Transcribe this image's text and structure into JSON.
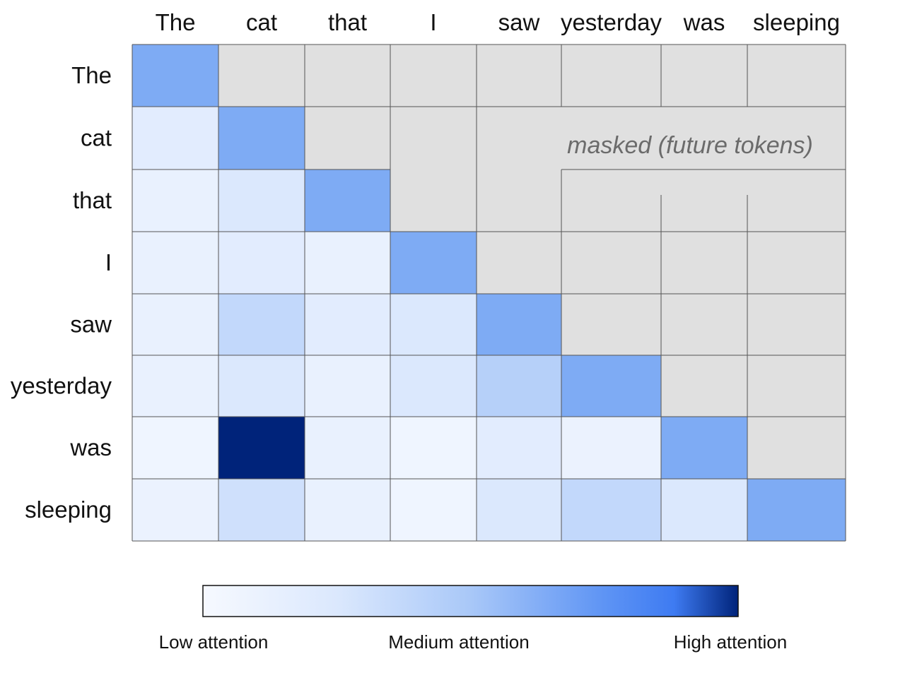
{
  "chart_data": {
    "type": "heatmap",
    "x_tokens": [
      "The",
      "cat",
      "that",
      "I",
      "saw",
      "yesterday",
      "was",
      "sleeping"
    ],
    "y_tokens": [
      "The",
      "cat",
      "that",
      "I",
      "saw",
      "yesterday",
      "was",
      "sleeping"
    ],
    "values": [
      [
        0.55,
        null,
        null,
        null,
        null,
        null,
        null,
        null
      ],
      [
        0.15,
        0.55,
        null,
        null,
        null,
        null,
        null,
        null
      ],
      [
        0.1,
        0.2,
        0.55,
        null,
        null,
        null,
        null,
        null
      ],
      [
        0.1,
        0.15,
        0.1,
        0.55,
        null,
        null,
        null,
        null
      ],
      [
        0.1,
        0.3,
        0.15,
        0.2,
        0.55,
        null,
        null,
        null
      ],
      [
        0.1,
        0.2,
        0.1,
        0.2,
        0.35,
        0.55,
        null,
        null
      ],
      [
        0.05,
        1.0,
        0.1,
        0.05,
        0.15,
        0.08,
        0.55,
        null
      ],
      [
        0.08,
        0.25,
        0.1,
        0.05,
        0.2,
        0.3,
        0.2,
        0.55
      ]
    ],
    "value_range": [
      0,
      1
    ],
    "mask_annotation": "masked (future tokens)",
    "colorbar": {
      "low_label": "Low attention",
      "mid_label": "Medium attention",
      "high_label": "High attention"
    },
    "grid": true
  },
  "colors": {
    "masked_cell": "#e0e0e0",
    "grid_line": "#555555",
    "scale": [
      "#f6f9ff",
      "#dbe8fd",
      "#a9c8f8",
      "#6fa1f2",
      "#3e7bf2",
      "#00237a"
    ],
    "mask_text": "#6b6b6b"
  }
}
